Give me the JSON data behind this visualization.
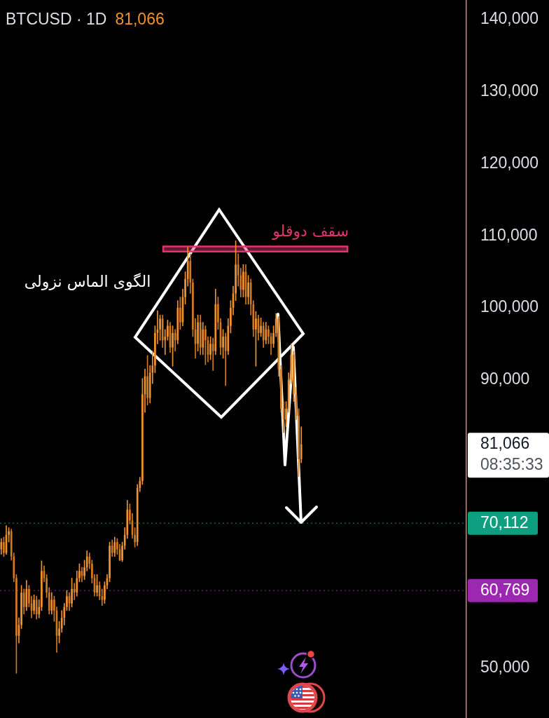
{
  "chart_data": {
    "type": "candlestick",
    "title": "BTCUSD · 1D",
    "subtitle": "81,066",
    "categories": [
      null,
      null,
      null,
      null,
      null,
      null,
      null,
      null,
      null,
      null,
      null,
      null,
      null,
      null,
      null,
      null,
      null,
      null,
      null,
      null,
      null,
      null,
      null,
      null,
      null,
      null,
      null,
      null,
      null,
      null,
      null,
      null,
      null,
      null,
      null,
      null,
      null,
      null,
      null,
      null,
      null,
      null,
      null,
      null,
      null,
      null,
      null,
      null,
      null,
      null,
      null,
      null,
      null,
      null,
      null,
      null,
      null,
      null,
      null,
      null,
      null,
      null,
      null,
      null,
      null,
      null,
      null,
      null,
      null,
      null,
      null,
      null,
      null,
      null,
      null,
      null,
      null,
      null,
      null,
      null,
      null,
      null,
      null,
      null,
      null,
      null,
      null,
      null,
      null,
      null,
      null,
      null,
      null,
      null,
      null,
      null,
      null,
      null,
      null,
      null,
      null,
      null,
      null,
      null,
      null,
      null,
      null,
      null,
      null,
      null,
      null,
      null,
      null,
      null,
      null,
      null,
      null,
      null,
      null,
      null,
      null,
      null,
      null,
      null,
      null,
      null,
      null,
      null,
      null,
      null,
      null,
      null,
      null,
      null,
      null,
      null,
      null,
      null,
      null,
      null,
      null,
      null,
      null,
      null,
      null,
      null,
      null,
      null,
      null,
      null,
      null,
      null,
      null,
      null,
      null,
      null,
      null,
      null,
      null,
      null,
      null,
      null,
      null,
      null,
      null,
      null,
      null,
      null,
      null,
      null,
      null,
      null,
      null,
      null,
      null,
      null,
      null,
      null,
      null,
      null,
      null,
      null,
      null,
      null,
      null
    ],
    "ohlc": [
      [
        66500,
        68000,
        65800,
        67500
      ],
      [
        67500,
        68200,
        65500,
        66000
      ],
      [
        66000,
        69800,
        65800,
        68500
      ],
      [
        68500,
        69500,
        67500,
        69000
      ],
      [
        69000,
        69300,
        65000,
        65500
      ],
      [
        65500,
        66000,
        62000,
        62500
      ],
      [
        62500,
        63000,
        49300,
        54500
      ],
      [
        54500,
        57000,
        53500,
        56000
      ],
      [
        56000,
        61500,
        55500,
        60500
      ],
      [
        60500,
        61000,
        57500,
        58500
      ],
      [
        58500,
        62200,
        58000,
        61000
      ],
      [
        61000,
        61500,
        58500,
        59000
      ],
      [
        59000,
        60000,
        57000,
        58000
      ],
      [
        58000,
        60200,
        57500,
        59500
      ],
      [
        59500,
        60000,
        56800,
        57500
      ],
      [
        57500,
        59500,
        57000,
        58500
      ],
      [
        58500,
        64900,
        58000,
        63500
      ],
      [
        63500,
        64200,
        62000,
        62500
      ],
      [
        62500,
        63000,
        59800,
        60500
      ],
      [
        60500,
        61200,
        57500,
        58000
      ],
      [
        58000,
        60500,
        57500,
        59500
      ],
      [
        59500,
        60000,
        56500,
        58000
      ],
      [
        58000,
        58500,
        52200,
        54500
      ],
      [
        54500,
        56500,
        53500,
        55500
      ],
      [
        55500,
        58000,
        55000,
        57000
      ],
      [
        57000,
        59000,
        56000,
        58500
      ],
      [
        58500,
        60800,
        58000,
        60000
      ],
      [
        60000,
        60500,
        58000,
        59000
      ],
      [
        59000,
        62500,
        58500,
        61000
      ],
      [
        61000,
        61800,
        59500,
        60500
      ],
      [
        60500,
        63500,
        60000,
        62500
      ],
      [
        62500,
        64500,
        62000,
        63500
      ],
      [
        63500,
        64000,
        62000,
        62800
      ],
      [
        62800,
        65000,
        62300,
        64000
      ],
      [
        64000,
        66300,
        63500,
        65500
      ],
      [
        65500,
        66000,
        63800,
        64500
      ],
      [
        64500,
        65000,
        61800,
        62500
      ],
      [
        62500,
        63000,
        60000,
        60500
      ],
      [
        60500,
        63000,
        60000,
        61500
      ],
      [
        61500,
        62000,
        59500,
        60000
      ],
      [
        60000,
        61000,
        58700,
        59500
      ],
      [
        59500,
        62000,
        59000,
        61500
      ],
      [
        61500,
        63000,
        61000,
        62500
      ],
      [
        62500,
        67500,
        62000,
        67000
      ],
      [
        67000,
        67800,
        65500,
        66000
      ],
      [
        66000,
        68200,
        65500,
        67500
      ],
      [
        67500,
        68000,
        65800,
        66500
      ],
      [
        66500,
        67200,
        64900,
        65000
      ],
      [
        65000,
        67500,
        64800,
        67000
      ],
      [
        67000,
        69500,
        66500,
        68500
      ],
      [
        68500,
        73300,
        68000,
        72000
      ],
      [
        72000,
        72800,
        70000,
        70500
      ],
      [
        70500,
        71500,
        68000,
        68500
      ],
      [
        68500,
        69500,
        66800,
        67500
      ],
      [
        67500,
        75500,
        67000,
        75000
      ],
      [
        75000,
        76500,
        74500,
        76000
      ],
      [
        76000,
        90200,
        75500,
        88000
      ],
      [
        88000,
        91500,
        85500,
        90500
      ],
      [
        90500,
        93400,
        86500,
        87500
      ],
      [
        87500,
        92000,
        86800,
        91000
      ],
      [
        91000,
        94000,
        89500,
        92000
      ],
      [
        92000,
        97500,
        91000,
        96500
      ],
      [
        96500,
        99600,
        95000,
        97000
      ],
      [
        97000,
        99000,
        95500,
        98500
      ],
      [
        98500,
        99000,
        94500,
        95500
      ],
      [
        95500,
        97000,
        93500,
        96000
      ],
      [
        96000,
        98300,
        95500,
        97500
      ],
      [
        97500,
        98000,
        93800,
        94500
      ],
      [
        94500,
        97500,
        91900,
        96500
      ],
      [
        96500,
        97000,
        94000,
        95500
      ],
      [
        95500,
        101000,
        95000,
        100000
      ],
      [
        100000,
        101500,
        97000,
        98000
      ],
      [
        98000,
        102600,
        97500,
        101500
      ],
      [
        101500,
        105000,
        100500,
        104000
      ],
      [
        104000,
        108400,
        103000,
        106500
      ],
      [
        106500,
        107500,
        102000,
        103500
      ],
      [
        103500,
        104000,
        96000,
        97000
      ],
      [
        97000,
        98500,
        93000,
        95000
      ],
      [
        95000,
        99000,
        94000,
        98000
      ],
      [
        98000,
        99000,
        93500,
        94500
      ],
      [
        94500,
        98000,
        93500,
        97000
      ],
      [
        97000,
        97500,
        92100,
        95500
      ],
      [
        95500,
        96000,
        92500,
        93500
      ],
      [
        93500,
        96000,
        92800,
        95000
      ],
      [
        95000,
        95800,
        91300,
        94000
      ],
      [
        94000,
        102600,
        93500,
        100500
      ],
      [
        100500,
        101500,
        97000,
        98000
      ],
      [
        98000,
        98500,
        93500,
        94500
      ],
      [
        94500,
        97000,
        93000,
        96000
      ],
      [
        96000,
        96500,
        89200,
        94000
      ],
      [
        94000,
        98500,
        93500,
        97500
      ],
      [
        97500,
        101000,
        96500,
        100000
      ],
      [
        100000,
        103000,
        99000,
        102000
      ],
      [
        102000,
        109300,
        101000,
        106000
      ],
      [
        106000,
        107500,
        103000,
        104500
      ],
      [
        104500,
        105500,
        101500,
        102500
      ],
      [
        102500,
        106000,
        101500,
        105000
      ],
      [
        105000,
        106000,
        100500,
        101500
      ],
      [
        101500,
        104500,
        100500,
        103500
      ],
      [
        103500,
        104000,
        99000,
        100500
      ],
      [
        100500,
        101000,
        96000,
        97000
      ],
      [
        97000,
        99500,
        91900,
        98500
      ],
      [
        98500,
        99000,
        95500,
        96500
      ],
      [
        96500,
        98600,
        96000,
        97500
      ],
      [
        97500,
        98000,
        94500,
        95500
      ],
      [
        95500,
        98000,
        95000,
        97000
      ],
      [
        97000,
        97500,
        95000,
        96000
      ],
      [
        96000,
        96500,
        93500,
        95000
      ],
      [
        95000,
        97500,
        94500,
        96500
      ],
      [
        96500,
        99200,
        96000,
        98500
      ],
      [
        98500,
        98800,
        90500,
        91500
      ],
      [
        91500,
        92000,
        85500,
        86000
      ],
      [
        86000,
        87000,
        82700,
        84500
      ],
      [
        84500,
        87000,
        83500,
        86000
      ],
      [
        86000,
        91000,
        85500,
        90000
      ],
      [
        90000,
        95000,
        89500,
        93500
      ],
      [
        93500,
        94000,
        87000,
        88000
      ],
      [
        88000,
        89000,
        84500,
        85000
      ],
      [
        85000,
        86000,
        76600,
        79000
      ],
      [
        79000,
        83500,
        78500,
        81066
      ],
      null,
      null,
      null,
      null,
      null,
      null,
      null,
      null,
      null,
      null,
      null,
      null,
      null,
      null,
      null,
      null,
      null,
      null,
      null,
      null,
      null,
      null,
      null,
      null,
      null,
      null,
      null,
      null,
      null,
      null,
      null,
      null,
      null,
      null,
      null,
      null,
      null,
      null,
      null,
      null,
      null,
      null,
      null,
      null,
      null,
      null,
      null,
      null,
      null,
      null,
      null,
      null,
      null,
      null,
      null,
      null,
      null,
      null,
      null,
      null,
      null,
      null,
      null,
      null,
      null
    ],
    "colors": [
      "#f0922e",
      "#d07a22",
      "#f0922e",
      "#f0922e",
      "#d07a22",
      "#d07a22",
      "#d07a22",
      "#f0922e",
      "#f0922e",
      "#d07a22",
      "#f0922e",
      "#d07a22",
      "#d07a22",
      "#f0922e",
      "#d07a22",
      "#f0922e",
      "#f0922e",
      "#d07a22",
      "#d07a22",
      "#d07a22",
      "#f0922e",
      "#d07a22",
      "#d07a22",
      "#f0922e",
      "#f0922e",
      "#f0922e",
      "#f0922e",
      "#d07a22",
      "#f0922e",
      "#d07a22",
      "#f0922e",
      "#f0922e",
      "#d07a22",
      "#f0922e",
      "#f0922e",
      "#d07a22",
      "#d07a22",
      "#d07a22",
      "#f0922e",
      "#d07a22",
      "#d07a22",
      "#f0922e",
      "#f0922e",
      "#f0922e",
      "#d07a22",
      "#f0922e",
      "#d07a22",
      "#d07a22",
      "#f0922e",
      "#f0922e",
      "#f0922e",
      "#d07a22",
      "#d07a22",
      "#d07a22",
      "#f0922e",
      "#f0922e",
      "#f0922e",
      "#f0922e",
      "#d07a22",
      "#f0922e",
      "#f0922e",
      "#f0922e",
      "#f0922e",
      "#f0922e",
      "#d07a22",
      "#f0922e",
      "#f0922e",
      "#d07a22",
      "#f0922e",
      "#d07a22",
      "#f0922e",
      "#d07a22",
      "#f0922e",
      "#f0922e",
      "#f0922e",
      "#d07a22",
      "#d07a22",
      "#d07a22",
      "#f0922e",
      "#d07a22",
      "#f0922e",
      "#d07a22",
      "#d07a22",
      "#f0922e",
      "#d07a22",
      "#f0922e",
      "#d07a22",
      "#d07a22",
      "#f0922e",
      "#d07a22",
      "#f0922e",
      "#f0922e",
      "#f0922e",
      "#f0922e",
      "#d07a22",
      "#d07a22",
      "#f0922e",
      "#d07a22",
      "#f0922e",
      "#d07a22",
      "#d07a22",
      "#f0922e",
      "#d07a22",
      "#f0922e",
      "#d07a22",
      "#f0922e",
      "#d07a22",
      "#d07a22",
      "#f0922e",
      "#f0922e",
      "#d07a22",
      "#d07a22",
      "#d07a22",
      "#f0922e",
      "#f0922e",
      "#f0922e",
      "#d07a22",
      "#d07a22",
      "#d07a22",
      "#f0922e",
      null,
      null,
      null,
      null,
      null,
      null,
      null,
      null,
      null,
      null,
      null,
      null,
      null,
      null,
      null,
      null,
      null,
      null,
      null,
      null,
      null,
      null,
      null,
      null,
      null,
      null,
      null,
      null,
      null,
      null,
      null,
      null,
      null,
      null,
      null,
      null,
      null,
      null,
      null,
      null,
      null,
      null,
      null,
      null,
      null,
      null,
      null,
      null,
      null,
      null,
      null,
      null,
      null,
      null,
      null,
      null,
      null,
      null,
      null,
      null,
      null,
      null,
      null,
      null,
      null
    ],
    "ylim": [
      43100,
      142700
    ],
    "yticks": [
      {
        "value": 50000,
        "label": "50,000"
      },
      {
        "value": 90000,
        "label": "90,000"
      },
      {
        "value": 100000,
        "label": "100,000"
      },
      {
        "value": 110000,
        "label": "110,000"
      },
      {
        "value": 120000,
        "label": "120,000"
      },
      {
        "value": 130000,
        "label": "130,000"
      },
      {
        "value": 140000,
        "label": "140,000"
      }
    ],
    "tick_labels": "y",
    "bands": [
      {
        "axis": "y",
        "from": 107800,
        "to": 108500,
        "label": "سقف دوقلو",
        "color": "#e0356a"
      }
    ],
    "ref_lines": [
      {
        "axis": "y",
        "value": 70112,
        "label": "70,112",
        "color": "#0e9f80",
        "line_style": "dotted"
      },
      {
        "axis": "y",
        "value": 60769,
        "label": "60,769",
        "color": "#9c27b0",
        "line_style": "dotted"
      }
    ],
    "annotations": [
      "الگوی الماس نزولی",
      "81,066",
      "08:35:33"
    ]
  }
}
